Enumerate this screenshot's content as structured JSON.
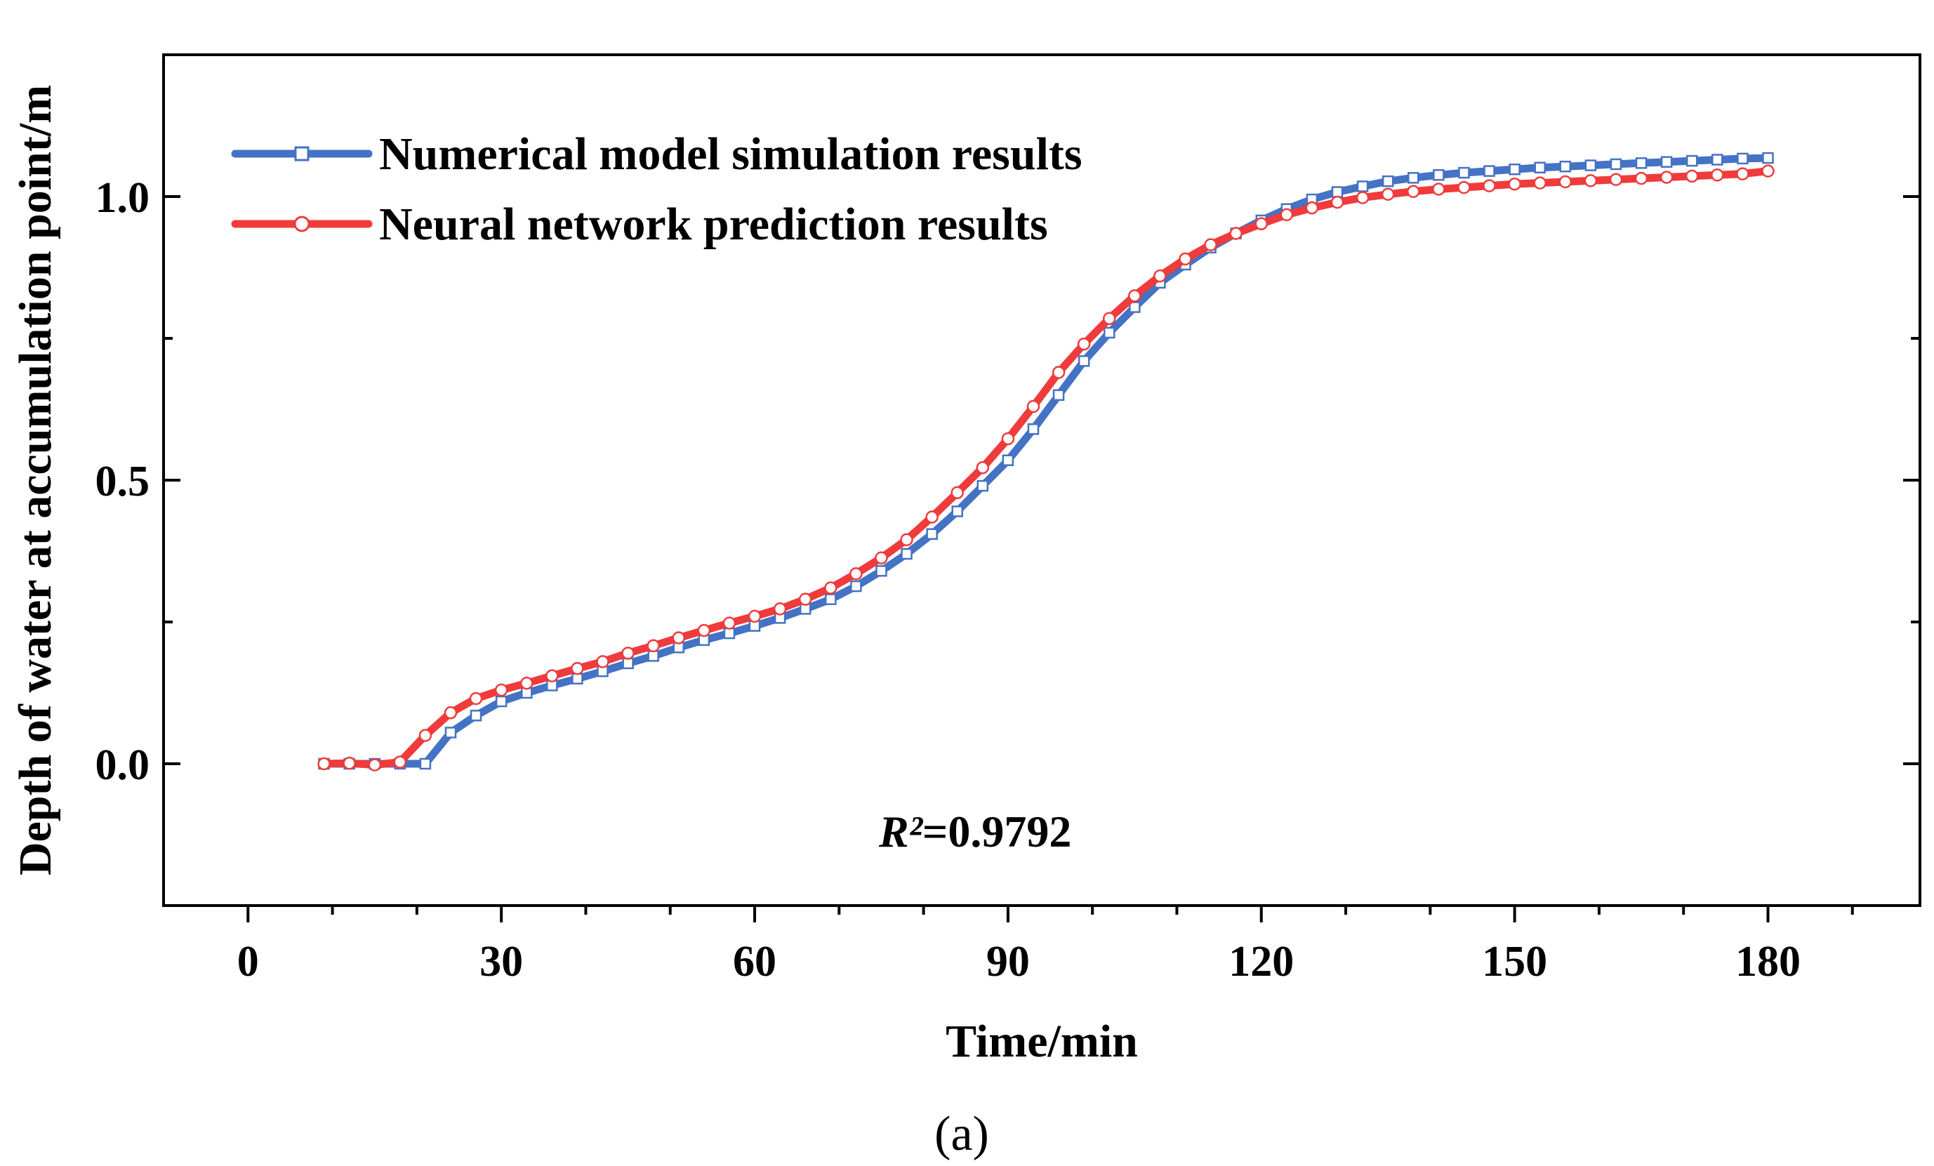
{
  "chart_data": {
    "type": "line",
    "title": "",
    "xlabel": "Time/min",
    "ylabel": "Depth of water at accumulation point/m",
    "xlim": [
      -10,
      198
    ],
    "ylim": [
      -0.25,
      1.25
    ],
    "xticks": [
      0,
      30,
      60,
      90,
      120,
      150,
      180
    ],
    "xtick_labels": [
      "0",
      "30",
      "60",
      "90",
      "120",
      "150",
      "180"
    ],
    "yticks": [
      0.0,
      0.5,
      1.0
    ],
    "ytick_labels": [
      "0.0",
      "0.5",
      "1.0"
    ],
    "x": [
      9,
      12,
      15,
      18,
      21,
      24,
      27,
      30,
      33,
      36,
      39,
      42,
      45,
      48,
      51,
      54,
      57,
      60,
      63,
      66,
      69,
      72,
      75,
      78,
      81,
      84,
      87,
      90,
      93,
      96,
      99,
      102,
      105,
      108,
      111,
      114,
      117,
      120,
      123,
      126,
      129,
      132,
      135,
      138,
      141,
      144,
      147,
      150,
      153,
      156,
      159,
      162,
      165,
      168,
      171,
      174,
      177,
      180
    ],
    "series": [
      {
        "name": "Numerical model simulation results",
        "color": "#4472c4",
        "marker": "square",
        "values": [
          0,
          0,
          0,
          0,
          0,
          0.055,
          0.085,
          0.11,
          0.125,
          0.138,
          0.15,
          0.163,
          0.177,
          0.19,
          0.205,
          0.218,
          0.23,
          0.243,
          0.257,
          0.273,
          0.29,
          0.313,
          0.34,
          0.37,
          0.405,
          0.445,
          0.49,
          0.535,
          0.59,
          0.65,
          0.71,
          0.76,
          0.805,
          0.848,
          0.88,
          0.91,
          0.935,
          0.958,
          0.978,
          0.995,
          1.008,
          1.018,
          1.027,
          1.033,
          1.038,
          1.042,
          1.045,
          1.048,
          1.051,
          1.053,
          1.055,
          1.057,
          1.059,
          1.061,
          1.063,
          1.065,
          1.067,
          1.068
        ]
      },
      {
        "name": "Neural network prediction results",
        "color": "#ef3b3b",
        "marker": "circle",
        "values": [
          0,
          0.001,
          -0.002,
          0.003,
          0.05,
          0.09,
          0.115,
          0.13,
          0.142,
          0.155,
          0.168,
          0.18,
          0.195,
          0.208,
          0.222,
          0.235,
          0.248,
          0.26,
          0.273,
          0.29,
          0.31,
          0.335,
          0.363,
          0.395,
          0.435,
          0.478,
          0.522,
          0.573,
          0.63,
          0.69,
          0.74,
          0.785,
          0.825,
          0.86,
          0.89,
          0.915,
          0.935,
          0.952,
          0.968,
          0.98,
          0.99,
          0.998,
          1.004,
          1.009,
          1.013,
          1.016,
          1.019,
          1.022,
          1.024,
          1.026,
          1.028,
          1.03,
          1.032,
          1.034,
          1.036,
          1.038,
          1.04,
          1.045
        ]
      }
    ],
    "legend_position": "top-left",
    "annotation": {
      "prefix": "R²",
      "value": "=0.9792"
    }
  },
  "caption": "(a)"
}
